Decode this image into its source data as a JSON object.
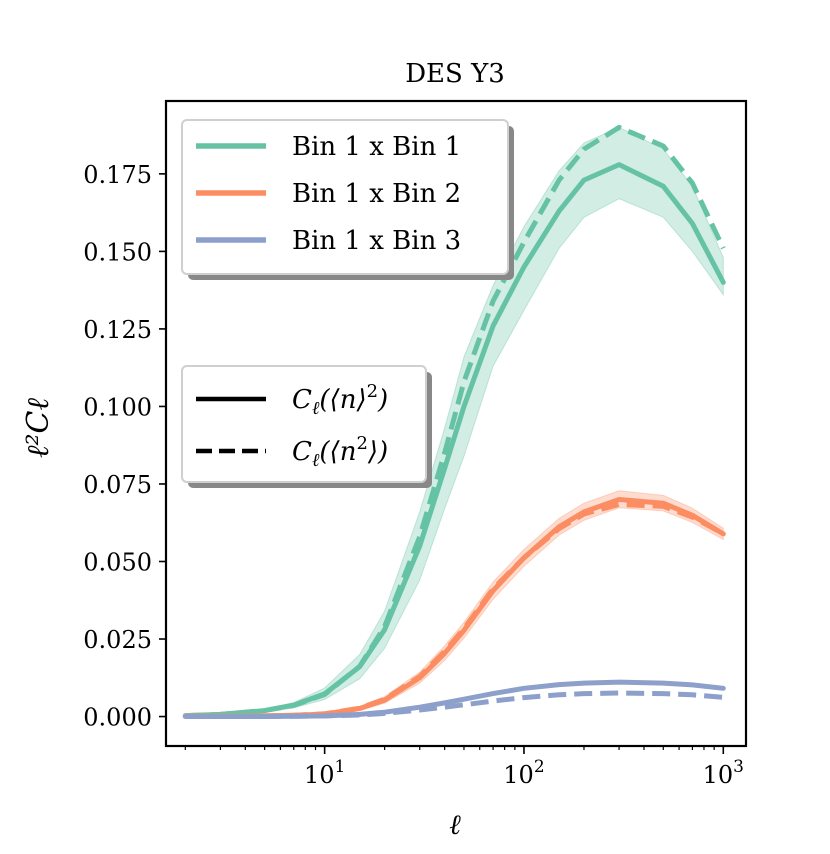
{
  "chart_data": {
    "type": "line",
    "title": "DES Y3",
    "xlabel": "ℓ",
    "ylabel": "ℓ²Cℓ",
    "xscale": "log",
    "xlim": [
      1.6,
      1300
    ],
    "ylim": [
      -0.0095,
      0.1985
    ],
    "x_ticks": [
      {
        "value": 10,
        "base": "10",
        "exp": "1"
      },
      {
        "value": 100,
        "base": "10",
        "exp": "2"
      },
      {
        "value": 1000,
        "base": "10",
        "exp": "3"
      }
    ],
    "y_ticks": [
      {
        "value": 0.0,
        "label": "0.000"
      },
      {
        "value": 0.025,
        "label": "0.025"
      },
      {
        "value": 0.05,
        "label": "0.050"
      },
      {
        "value": 0.075,
        "label": "0.075"
      },
      {
        "value": 0.1,
        "label": "0.100"
      },
      {
        "value": 0.125,
        "label": "0.125"
      },
      {
        "value": 0.15,
        "label": "0.150"
      },
      {
        "value": 0.175,
        "label": "0.175"
      }
    ],
    "grid": false,
    "x": [
      2,
      3,
      5,
      7,
      10,
      15,
      20,
      30,
      40,
      50,
      70,
      100,
      150,
      200,
      300,
      500,
      700,
      1000
    ],
    "series": [
      {
        "name": "Bin 1 x Bin 1",
        "color": "#66c2a5",
        "solid": [
          0.0003,
          0.0007,
          0.0019,
          0.0037,
          0.0073,
          0.0161,
          0.028,
          0.055,
          0.08,
          0.1,
          0.126,
          0.145,
          0.163,
          0.173,
          0.178,
          0.171,
          0.159,
          0.14
        ],
        "dashed": [
          0.0003,
          0.0007,
          0.0019,
          0.0036,
          0.0071,
          0.0162,
          0.029,
          0.058,
          0.085,
          0.108,
          0.134,
          0.153,
          0.173,
          0.183,
          0.19,
          0.184,
          0.172,
          0.151
        ],
        "band_lower": [
          0.0002,
          0.0005,
          0.0014,
          0.0028,
          0.0055,
          0.0122,
          0.022,
          0.044,
          0.067,
          0.084,
          0.113,
          0.131,
          0.151,
          0.161,
          0.167,
          0.161,
          0.15,
          0.136
        ],
        "band_upper": [
          0.0004,
          0.0009,
          0.0024,
          0.0045,
          0.0092,
          0.02,
          0.034,
          0.066,
          0.093,
          0.116,
          0.139,
          0.158,
          0.176,
          0.185,
          0.19,
          0.183,
          0.171,
          0.148
        ]
      },
      {
        "name": "Bin 1 x Bin 2",
        "color": "#fc8d62",
        "solid": [
          0.0001,
          0.0001,
          0.0002,
          0.0004,
          0.0008,
          0.0026,
          0.0053,
          0.0125,
          0.0204,
          0.0278,
          0.0406,
          0.0512,
          0.0612,
          0.066,
          0.07,
          0.0688,
          0.0649,
          0.0589
        ],
        "dashed": [
          0.0001,
          0.0001,
          0.0002,
          0.0004,
          0.0009,
          0.0027,
          0.0056,
          0.0129,
          0.021,
          0.0284,
          0.0412,
          0.0512,
          0.0606,
          0.0653,
          0.0684,
          0.0678,
          0.0643,
          0.059
        ],
        "band_lower": [
          0.0,
          0.0,
          0.0001,
          0.0003,
          0.0006,
          0.002,
          0.0043,
          0.0108,
          0.0181,
          0.0253,
          0.0378,
          0.0485,
          0.0585,
          0.0633,
          0.0673,
          0.0663,
          0.0626,
          0.0571
        ],
        "band_upper": [
          0.0001,
          0.0002,
          0.0003,
          0.0005,
          0.001,
          0.0032,
          0.0064,
          0.0143,
          0.0228,
          0.0304,
          0.0434,
          0.0539,
          0.0639,
          0.0688,
          0.0728,
          0.0713,
          0.0672,
          0.0607
        ]
      },
      {
        "name": "Bin 1 x Bin 3",
        "color": "#8da0cb",
        "solid": [
          0.0,
          0.0,
          0.0,
          0.0001,
          0.0002,
          0.0007,
          0.0014,
          0.003,
          0.0044,
          0.0056,
          0.0074,
          0.0091,
          0.0103,
          0.0108,
          0.0111,
          0.0108,
          0.0102,
          0.0091
        ],
        "dashed": [
          0.0,
          0.0,
          0.0,
          0.0001,
          0.0002,
          0.0005,
          0.001,
          0.0021,
          0.003,
          0.0038,
          0.005,
          0.0061,
          0.007,
          0.0074,
          0.0076,
          0.0074,
          0.007,
          0.0062
        ],
        "band_lower": [
          0.0,
          0.0,
          0.0,
          0.0001,
          0.0002,
          0.0006,
          0.0012,
          0.0027,
          0.0041,
          0.0053,
          0.0071,
          0.0088,
          0.01,
          0.0105,
          0.0108,
          0.0105,
          0.0099,
          0.0088
        ],
        "band_upper": [
          0.0,
          0.0,
          0.0001,
          0.0001,
          0.0003,
          0.0008,
          0.0016,
          0.0033,
          0.0047,
          0.0059,
          0.0077,
          0.0094,
          0.0106,
          0.0111,
          0.0114,
          0.0111,
          0.0105,
          0.0094
        ]
      }
    ],
    "legend_bins": {
      "placement": "upper-left",
      "entries": [
        "Bin 1 x Bin 1",
        "Bin 1 x Bin 2",
        "Bin 1 x Bin 3"
      ]
    },
    "legend_styles": {
      "placement": "center-left",
      "entries": [
        {
          "style": "solid",
          "label_main": "C",
          "label_sub": "ℓ",
          "label_rest": "(⟨n⟩",
          "label_sup": "2",
          "label_end": ")"
        },
        {
          "style": "dashed",
          "label_main": "C",
          "label_sub": "ℓ",
          "label_rest": "(⟨n",
          "label_sup": "2",
          "label_end": "⟩)"
        }
      ]
    }
  }
}
